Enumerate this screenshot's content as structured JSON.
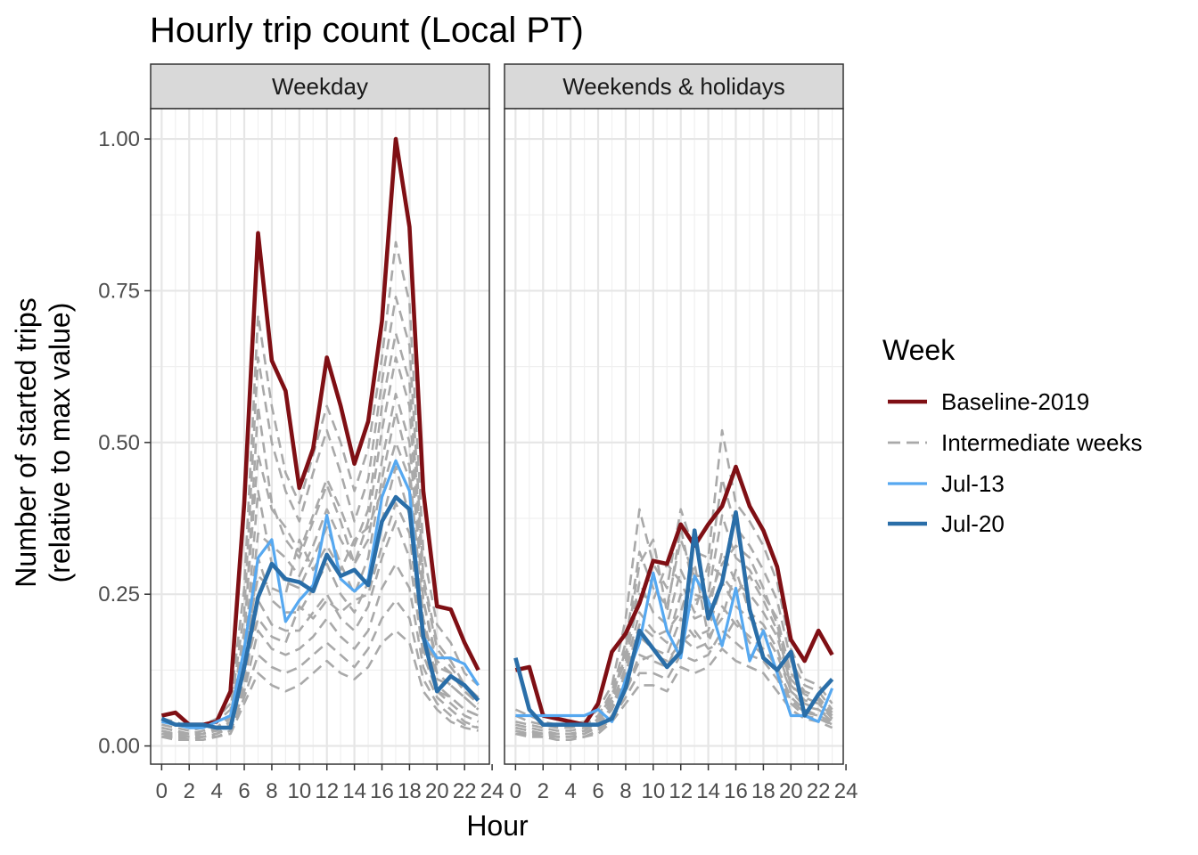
{
  "chart_data": {
    "type": "line",
    "title": "Hourly trip count (Local PT)",
    "xlabel": "Hour",
    "ylabel_line1": "Number of started trips",
    "ylabel_line2": "(relative to max value)",
    "xlim": [
      -0.8,
      23.8
    ],
    "ylim": [
      -0.03,
      1.05
    ],
    "x_ticks": [
      0,
      2,
      4,
      6,
      8,
      10,
      12,
      14,
      16,
      18,
      20,
      22,
      24
    ],
    "x_tick_labels": [
      "0",
      "2",
      "4",
      "6",
      "8",
      "10",
      "12",
      "14",
      "16",
      "18",
      "20",
      "22",
      "24"
    ],
    "y_ticks": [
      0,
      0.25,
      0.5,
      0.75,
      1.0
    ],
    "y_tick_labels": [
      "0.00",
      "0.25",
      "0.50",
      "0.75",
      "1.00"
    ],
    "grid": true,
    "legend": {
      "title": "Week",
      "position": "right",
      "entries": [
        {
          "label": "Baseline-2019",
          "color": "#7f0f14",
          "style": "solid"
        },
        {
          "label": "Intermediate weeks",
          "color": "#a9a9a9",
          "style": "dashed"
        },
        {
          "label": "Jul-13",
          "color": "#56a8f0",
          "style": "solid"
        },
        {
          "label": "Jul-20",
          "color": "#2a6ea8",
          "style": "solid"
        }
      ]
    },
    "panels": [
      {
        "name": "Weekday",
        "series": [
          {
            "name": "Baseline-2019",
            "color": "#7f0f14",
            "values": [
              0.05,
              0.055,
              0.035,
              0.035,
              0.04,
              0.09,
              0.4,
              0.845,
              0.635,
              0.585,
              0.425,
              0.49,
              0.64,
              0.56,
              0.465,
              0.535,
              0.7,
              1.0,
              0.855,
              0.42,
              0.23,
              0.225,
              0.17,
              0.125
            ]
          },
          {
            "name": "Jul-13",
            "color": "#56a8f0",
            "values": [
              0.04,
              0.035,
              0.03,
              0.03,
              0.04,
              0.05,
              0.16,
              0.31,
              0.34,
              0.205,
              0.24,
              0.265,
              0.38,
              0.275,
              0.255,
              0.275,
              0.41,
              0.47,
              0.42,
              0.18,
              0.145,
              0.145,
              0.135,
              0.1
            ]
          },
          {
            "name": "Jul-20",
            "color": "#2a6ea8",
            "values": [
              0.045,
              0.035,
              0.035,
              0.035,
              0.03,
              0.03,
              0.13,
              0.245,
              0.3,
              0.275,
              0.27,
              0.255,
              0.315,
              0.28,
              0.29,
              0.265,
              0.37,
              0.41,
              0.39,
              0.18,
              0.09,
              0.115,
              0.1,
              0.075
            ]
          }
        ],
        "intermediate": [
          [
            0.045,
            0.04,
            0.03,
            0.035,
            0.045,
            0.07,
            0.26,
            0.71,
            0.56,
            0.45,
            0.4,
            0.48,
            0.56,
            0.5,
            0.42,
            0.49,
            0.64,
            0.83,
            0.73,
            0.32,
            0.2,
            0.17,
            0.12,
            0.1
          ],
          [
            0.035,
            0.03,
            0.025,
            0.03,
            0.04,
            0.06,
            0.22,
            0.64,
            0.5,
            0.42,
            0.37,
            0.45,
            0.52,
            0.45,
            0.37,
            0.44,
            0.6,
            0.74,
            0.66,
            0.28,
            0.17,
            0.14,
            0.1,
            0.08
          ],
          [
            0.03,
            0.025,
            0.02,
            0.02,
            0.03,
            0.05,
            0.17,
            0.56,
            0.4,
            0.34,
            0.31,
            0.37,
            0.43,
            0.37,
            0.3,
            0.37,
            0.52,
            0.64,
            0.56,
            0.24,
            0.14,
            0.12,
            0.09,
            0.07
          ],
          [
            0.025,
            0.02,
            0.02,
            0.02,
            0.025,
            0.04,
            0.14,
            0.42,
            0.3,
            0.27,
            0.26,
            0.31,
            0.36,
            0.3,
            0.25,
            0.31,
            0.44,
            0.55,
            0.46,
            0.21,
            0.12,
            0.1,
            0.08,
            0.06
          ],
          [
            0.02,
            0.02,
            0.015,
            0.015,
            0.02,
            0.035,
            0.11,
            0.31,
            0.24,
            0.22,
            0.22,
            0.26,
            0.3,
            0.25,
            0.22,
            0.27,
            0.37,
            0.46,
            0.38,
            0.18,
            0.1,
            0.08,
            0.06,
            0.05
          ],
          [
            0.02,
            0.015,
            0.015,
            0.015,
            0.02,
            0.03,
            0.1,
            0.24,
            0.2,
            0.19,
            0.19,
            0.22,
            0.25,
            0.21,
            0.19,
            0.23,
            0.31,
            0.37,
            0.31,
            0.15,
            0.09,
            0.07,
            0.05,
            0.04
          ],
          [
            0.015,
            0.015,
            0.015,
            0.015,
            0.02,
            0.03,
            0.09,
            0.19,
            0.16,
            0.15,
            0.16,
            0.18,
            0.21,
            0.18,
            0.16,
            0.19,
            0.26,
            0.3,
            0.26,
            0.13,
            0.08,
            0.06,
            0.04,
            0.03
          ],
          [
            0.015,
            0.015,
            0.01,
            0.015,
            0.015,
            0.025,
            0.08,
            0.15,
            0.13,
            0.12,
            0.13,
            0.15,
            0.17,
            0.15,
            0.13,
            0.16,
            0.21,
            0.24,
            0.21,
            0.11,
            0.07,
            0.05,
            0.035,
            0.03
          ],
          [
            0.015,
            0.01,
            0.01,
            0.01,
            0.015,
            0.02,
            0.07,
            0.12,
            0.1,
            0.09,
            0.1,
            0.12,
            0.14,
            0.12,
            0.11,
            0.13,
            0.17,
            0.19,
            0.17,
            0.09,
            0.06,
            0.04,
            0.03,
            0.025
          ],
          [
            0.02,
            0.02,
            0.015,
            0.02,
            0.025,
            0.04,
            0.13,
            0.35,
            0.33,
            0.31,
            0.28,
            0.33,
            0.39,
            0.34,
            0.3,
            0.34,
            0.47,
            0.58,
            0.5,
            0.24,
            0.13,
            0.12,
            0.09,
            0.07
          ],
          [
            0.025,
            0.02,
            0.02,
            0.02,
            0.03,
            0.045,
            0.15,
            0.28,
            0.26,
            0.25,
            0.34,
            0.29,
            0.33,
            0.29,
            0.34,
            0.36,
            0.42,
            0.5,
            0.44,
            0.2,
            0.11,
            0.1,
            0.08,
            0.06
          ],
          [
            0.02,
            0.015,
            0.015,
            0.015,
            0.02,
            0.035,
            0.12,
            0.21,
            0.18,
            0.17,
            0.23,
            0.21,
            0.24,
            0.22,
            0.24,
            0.25,
            0.33,
            0.4,
            0.35,
            0.16,
            0.09,
            0.08,
            0.06,
            0.05
          ],
          [
            0.03,
            0.025,
            0.02,
            0.025,
            0.03,
            0.05,
            0.19,
            0.48,
            0.39,
            0.36,
            0.32,
            0.38,
            0.44,
            0.39,
            0.33,
            0.39,
            0.56,
            0.68,
            0.6,
            0.27,
            0.16,
            0.13,
            0.1,
            0.08
          ]
        ]
      },
      {
        "name": "Weekends & holidays",
        "series": [
          {
            "name": "Baseline-2019",
            "color": "#7f0f14",
            "values": [
              0.125,
              0.13,
              0.05,
              0.045,
              0.04,
              0.035,
              0.07,
              0.155,
              0.185,
              0.235,
              0.305,
              0.3,
              0.365,
              0.33,
              0.365,
              0.395,
              0.46,
              0.395,
              0.355,
              0.295,
              0.175,
              0.14,
              0.19,
              0.15
            ]
          },
          {
            "name": "Jul-13",
            "color": "#56a8f0",
            "values": [
              0.05,
              0.05,
              0.05,
              0.05,
              0.05,
              0.05,
              0.06,
              0.04,
              0.11,
              0.17,
              0.285,
              0.19,
              0.145,
              0.28,
              0.24,
              0.165,
              0.26,
              0.14,
              0.19,
              0.12,
              0.05,
              0.05,
              0.04,
              0.095
            ]
          },
          {
            "name": "Jul-20",
            "color": "#2a6ea8",
            "values": [
              0.145,
              0.06,
              0.035,
              0.035,
              0.035,
              0.035,
              0.035,
              0.045,
              0.095,
              0.19,
              0.16,
              0.13,
              0.155,
              0.355,
              0.21,
              0.27,
              0.385,
              0.225,
              0.145,
              0.125,
              0.155,
              0.05,
              0.085,
              0.11
            ]
          }
        ],
        "intermediate": [
          [
            0.06,
            0.05,
            0.04,
            0.035,
            0.035,
            0.04,
            0.06,
            0.1,
            0.21,
            0.39,
            0.3,
            0.26,
            0.39,
            0.32,
            0.31,
            0.52,
            0.4,
            0.37,
            0.33,
            0.27,
            0.16,
            0.11,
            0.1,
            0.07
          ],
          [
            0.05,
            0.04,
            0.035,
            0.03,
            0.03,
            0.035,
            0.05,
            0.09,
            0.17,
            0.32,
            0.26,
            0.23,
            0.34,
            0.28,
            0.28,
            0.44,
            0.36,
            0.33,
            0.29,
            0.24,
            0.14,
            0.1,
            0.09,
            0.06
          ],
          [
            0.04,
            0.035,
            0.03,
            0.025,
            0.025,
            0.03,
            0.045,
            0.08,
            0.15,
            0.27,
            0.22,
            0.2,
            0.29,
            0.24,
            0.25,
            0.38,
            0.31,
            0.29,
            0.25,
            0.21,
            0.12,
            0.09,
            0.08,
            0.055
          ],
          [
            0.035,
            0.03,
            0.025,
            0.02,
            0.02,
            0.025,
            0.04,
            0.07,
            0.13,
            0.22,
            0.19,
            0.17,
            0.25,
            0.21,
            0.22,
            0.32,
            0.27,
            0.25,
            0.22,
            0.18,
            0.1,
            0.08,
            0.07,
            0.05
          ],
          [
            0.03,
            0.025,
            0.02,
            0.02,
            0.02,
            0.02,
            0.035,
            0.06,
            0.11,
            0.18,
            0.16,
            0.15,
            0.21,
            0.18,
            0.19,
            0.27,
            0.23,
            0.21,
            0.19,
            0.15,
            0.09,
            0.07,
            0.06,
            0.045
          ],
          [
            0.025,
            0.02,
            0.02,
            0.015,
            0.015,
            0.02,
            0.03,
            0.05,
            0.09,
            0.15,
            0.14,
            0.13,
            0.18,
            0.16,
            0.17,
            0.23,
            0.2,
            0.18,
            0.16,
            0.13,
            0.08,
            0.06,
            0.05,
            0.04
          ],
          [
            0.02,
            0.02,
            0.015,
            0.015,
            0.015,
            0.015,
            0.025,
            0.045,
            0.08,
            0.12,
            0.12,
            0.11,
            0.15,
            0.14,
            0.15,
            0.19,
            0.17,
            0.15,
            0.14,
            0.11,
            0.07,
            0.05,
            0.045,
            0.035
          ],
          [
            0.02,
            0.015,
            0.015,
            0.01,
            0.01,
            0.015,
            0.02,
            0.04,
            0.07,
            0.1,
            0.1,
            0.09,
            0.13,
            0.12,
            0.13,
            0.16,
            0.14,
            0.13,
            0.12,
            0.09,
            0.06,
            0.045,
            0.04,
            0.03
          ],
          [
            0.03,
            0.025,
            0.02,
            0.02,
            0.02,
            0.025,
            0.04,
            0.075,
            0.16,
            0.3,
            0.34,
            0.22,
            0.36,
            0.25,
            0.24,
            0.3,
            0.33,
            0.31,
            0.26,
            0.2,
            0.11,
            0.085,
            0.075,
            0.05
          ],
          [
            0.035,
            0.03,
            0.025,
            0.02,
            0.02,
            0.025,
            0.045,
            0.085,
            0.14,
            0.25,
            0.24,
            0.3,
            0.27,
            0.22,
            0.3,
            0.28,
            0.25,
            0.28,
            0.24,
            0.19,
            0.1,
            0.075,
            0.07,
            0.045
          ],
          [
            0.025,
            0.02,
            0.02,
            0.015,
            0.015,
            0.02,
            0.035,
            0.065,
            0.12,
            0.2,
            0.18,
            0.19,
            0.22,
            0.3,
            0.18,
            0.21,
            0.29,
            0.22,
            0.2,
            0.16,
            0.09,
            0.065,
            0.06,
            0.04
          ],
          [
            0.02,
            0.015,
            0.015,
            0.015,
            0.015,
            0.015,
            0.025,
            0.05,
            0.09,
            0.14,
            0.15,
            0.14,
            0.17,
            0.19,
            0.16,
            0.17,
            0.21,
            0.17,
            0.15,
            0.12,
            0.075,
            0.055,
            0.05,
            0.035
          ]
        ]
      }
    ]
  }
}
